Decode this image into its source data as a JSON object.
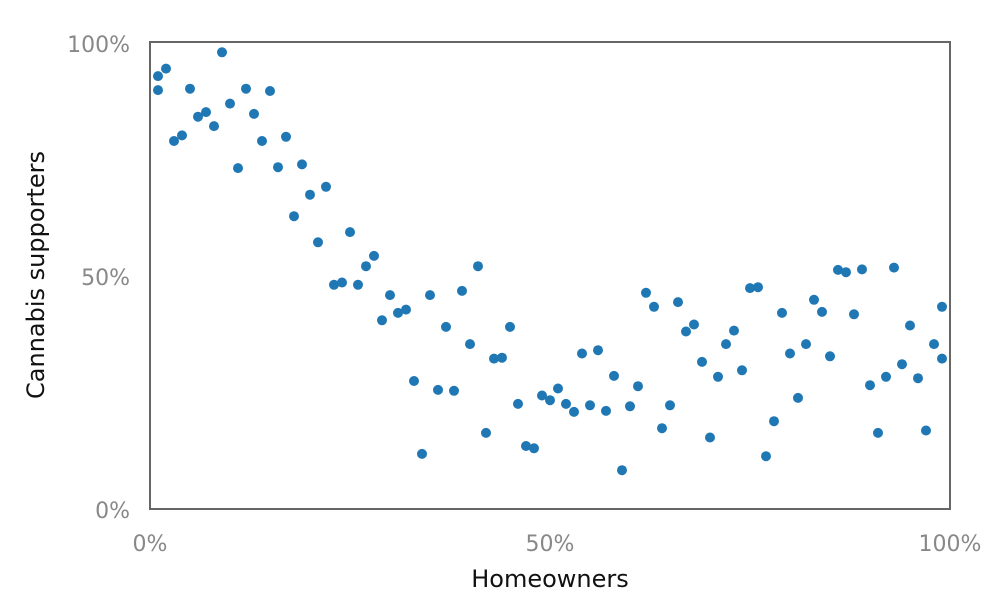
{
  "chart_data": {
    "type": "scatter",
    "title": "",
    "xlabel": "Homeowners",
    "ylabel": "Cannabis supporters",
    "xlim": [
      0,
      1
    ],
    "ylim": [
      0,
      1
    ],
    "x_ticks": [
      0,
      0.5,
      1
    ],
    "x_tick_labels": [
      "0%",
      "50%",
      "100%"
    ],
    "y_ticks": [
      0,
      0.5,
      1
    ],
    "y_tick_labels": [
      "0%",
      "50%",
      "100%"
    ],
    "grid": false,
    "marker_color": "#1f77b4",
    "axis_color": "#666666",
    "points": [
      {
        "x": 0.01,
        "y": 0.927
      },
      {
        "x": 0.01,
        "y": 0.897
      },
      {
        "x": 0.02,
        "y": 0.943
      },
      {
        "x": 0.03,
        "y": 0.788
      },
      {
        "x": 0.04,
        "y": 0.8
      },
      {
        "x": 0.05,
        "y": 0.9
      },
      {
        "x": 0.06,
        "y": 0.84
      },
      {
        "x": 0.07,
        "y": 0.85
      },
      {
        "x": 0.08,
        "y": 0.82
      },
      {
        "x": 0.09,
        "y": 0.978
      },
      {
        "x": 0.1,
        "y": 0.868
      },
      {
        "x": 0.11,
        "y": 0.73
      },
      {
        "x": 0.12,
        "y": 0.9
      },
      {
        "x": 0.13,
        "y": 0.846
      },
      {
        "x": 0.14,
        "y": 0.788
      },
      {
        "x": 0.15,
        "y": 0.895
      },
      {
        "x": 0.16,
        "y": 0.732
      },
      {
        "x": 0.17,
        "y": 0.797
      },
      {
        "x": 0.18,
        "y": 0.627
      },
      {
        "x": 0.19,
        "y": 0.738
      },
      {
        "x": 0.2,
        "y": 0.673
      },
      {
        "x": 0.21,
        "y": 0.571
      },
      {
        "x": 0.22,
        "y": 0.69
      },
      {
        "x": 0.23,
        "y": 0.48
      },
      {
        "x": 0.24,
        "y": 0.485
      },
      {
        "x": 0.25,
        "y": 0.593
      },
      {
        "x": 0.26,
        "y": 0.48
      },
      {
        "x": 0.27,
        "y": 0.52
      },
      {
        "x": 0.28,
        "y": 0.542
      },
      {
        "x": 0.29,
        "y": 0.404
      },
      {
        "x": 0.3,
        "y": 0.458
      },
      {
        "x": 0.31,
        "y": 0.42
      },
      {
        "x": 0.32,
        "y": 0.427
      },
      {
        "x": 0.33,
        "y": 0.274
      },
      {
        "x": 0.34,
        "y": 0.118
      },
      {
        "x": 0.35,
        "y": 0.458
      },
      {
        "x": 0.36,
        "y": 0.255
      },
      {
        "x": 0.37,
        "y": 0.39
      },
      {
        "x": 0.38,
        "y": 0.253
      },
      {
        "x": 0.39,
        "y": 0.467
      },
      {
        "x": 0.4,
        "y": 0.353
      },
      {
        "x": 0.41,
        "y": 0.52
      },
      {
        "x": 0.42,
        "y": 0.163
      },
      {
        "x": 0.43,
        "y": 0.322
      },
      {
        "x": 0.44,
        "y": 0.324
      },
      {
        "x": 0.45,
        "y": 0.39
      },
      {
        "x": 0.46,
        "y": 0.225
      },
      {
        "x": 0.47,
        "y": 0.135
      },
      {
        "x": 0.48,
        "y": 0.13
      },
      {
        "x": 0.49,
        "y": 0.243
      },
      {
        "x": 0.5,
        "y": 0.233
      },
      {
        "x": 0.51,
        "y": 0.258
      },
      {
        "x": 0.52,
        "y": 0.225
      },
      {
        "x": 0.53,
        "y": 0.208
      },
      {
        "x": 0.54,
        "y": 0.333
      },
      {
        "x": 0.55,
        "y": 0.222
      },
      {
        "x": 0.56,
        "y": 0.34
      },
      {
        "x": 0.57,
        "y": 0.21
      },
      {
        "x": 0.58,
        "y": 0.285
      },
      {
        "x": 0.59,
        "y": 0.083
      },
      {
        "x": 0.6,
        "y": 0.22
      },
      {
        "x": 0.61,
        "y": 0.263
      },
      {
        "x": 0.62,
        "y": 0.463
      },
      {
        "x": 0.63,
        "y": 0.433
      },
      {
        "x": 0.64,
        "y": 0.173
      },
      {
        "x": 0.65,
        "y": 0.222
      },
      {
        "x": 0.66,
        "y": 0.443
      },
      {
        "x": 0.67,
        "y": 0.38
      },
      {
        "x": 0.68,
        "y": 0.395
      },
      {
        "x": 0.69,
        "y": 0.315
      },
      {
        "x": 0.7,
        "y": 0.153
      },
      {
        "x": 0.71,
        "y": 0.283
      },
      {
        "x": 0.72,
        "y": 0.353
      },
      {
        "x": 0.73,
        "y": 0.382
      },
      {
        "x": 0.74,
        "y": 0.297
      },
      {
        "x": 0.75,
        "y": 0.473
      },
      {
        "x": 0.76,
        "y": 0.475
      },
      {
        "x": 0.77,
        "y": 0.113
      },
      {
        "x": 0.78,
        "y": 0.188
      },
      {
        "x": 0.79,
        "y": 0.42
      },
      {
        "x": 0.8,
        "y": 0.333
      },
      {
        "x": 0.81,
        "y": 0.238
      },
      {
        "x": 0.82,
        "y": 0.353
      },
      {
        "x": 0.83,
        "y": 0.448
      },
      {
        "x": 0.84,
        "y": 0.422
      },
      {
        "x": 0.85,
        "y": 0.327
      },
      {
        "x": 0.86,
        "y": 0.512
      },
      {
        "x": 0.87,
        "y": 0.507
      },
      {
        "x": 0.88,
        "y": 0.417
      },
      {
        "x": 0.89,
        "y": 0.513
      },
      {
        "x": 0.9,
        "y": 0.265
      },
      {
        "x": 0.91,
        "y": 0.163
      },
      {
        "x": 0.92,
        "y": 0.283
      },
      {
        "x": 0.93,
        "y": 0.517
      },
      {
        "x": 0.94,
        "y": 0.31
      },
      {
        "x": 0.95,
        "y": 0.393
      },
      {
        "x": 0.96,
        "y": 0.28
      },
      {
        "x": 0.97,
        "y": 0.168
      },
      {
        "x": 0.98,
        "y": 0.353
      },
      {
        "x": 0.99,
        "y": 0.433
      },
      {
        "x": 0.99,
        "y": 0.322
      }
    ]
  }
}
